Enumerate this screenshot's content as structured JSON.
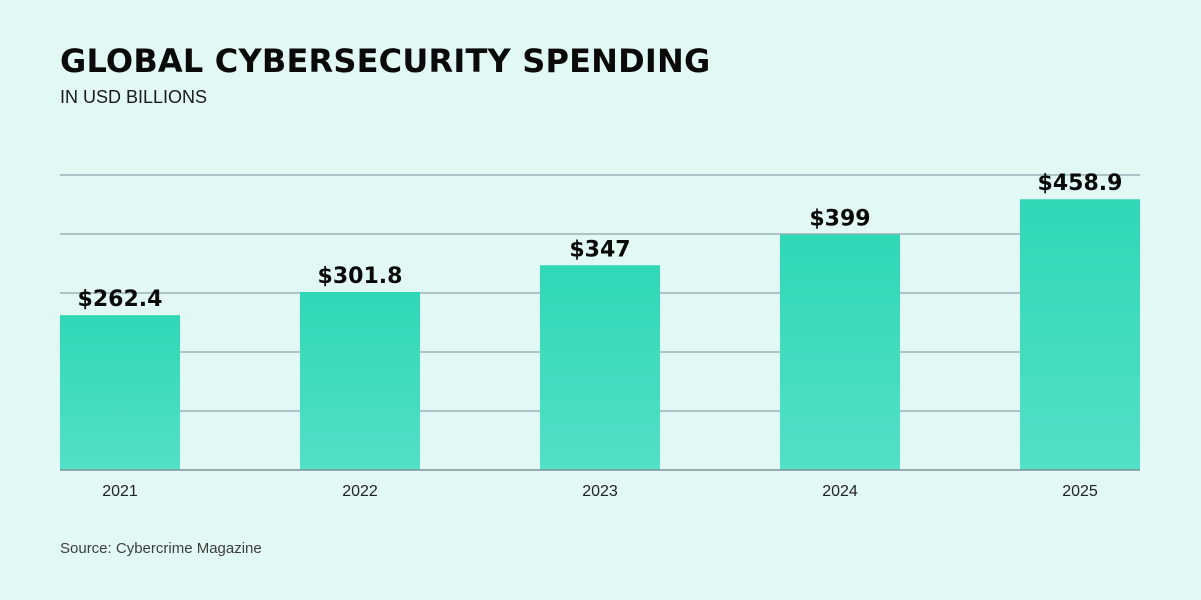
{
  "colors": {
    "background": "#e1f8f4",
    "bar_top": "#2fd8b6",
    "bar_bottom": "#52e0c7",
    "gridline": "#8fa3ad",
    "axis": "#7f8f99"
  },
  "chart_data": {
    "type": "bar",
    "title": "GLOBAL CYBERSECURITY SPENDING",
    "subtitle": "IN USD BILLIONS",
    "xlabel": "",
    "ylabel": "",
    "categories": [
      "2021",
      "2022",
      "2023",
      "2024",
      "2025"
    ],
    "values": [
      262.4,
      301.8,
      347,
      399,
      458.9
    ],
    "value_labels": [
      "$262.4",
      "$301.8",
      "$347",
      "$399",
      "$458.9"
    ],
    "ylim": [
      0,
      500
    ],
    "gridlines": [
      100,
      200,
      300,
      400,
      500
    ],
    "grid": true,
    "source": "Source:  Cybercrime Magazine"
  }
}
